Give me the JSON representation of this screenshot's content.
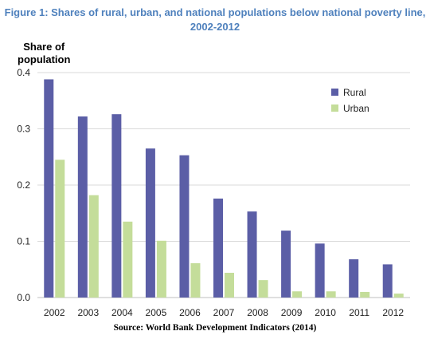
{
  "title_line1": "Figure 1: Shares of rural, urban, and national populations below national poverty line,",
  "title_line2": "2002-2012",
  "ylabel_line1": "Share of",
  "ylabel_line2": "population",
  "source": "Source: World Bank Development Indicators (2014)",
  "colors": {
    "rural": "#5b5ea6",
    "urban": "#c4dd9a",
    "title": "#4f81bd",
    "grid": "#d9d9d9"
  },
  "chart_data": {
    "type": "bar",
    "categories": [
      "2002",
      "2003",
      "2004",
      "2005",
      "2006",
      "2007",
      "2008",
      "2009",
      "2010",
      "2011",
      "2012"
    ],
    "series": [
      {
        "name": "Rural",
        "values": [
          0.388,
          0.322,
          0.326,
          0.265,
          0.253,
          0.176,
          0.153,
          0.119,
          0.096,
          0.068,
          0.059
        ]
      },
      {
        "name": "Urban",
        "values": [
          0.245,
          0.182,
          0.135,
          0.101,
          0.061,
          0.044,
          0.031,
          0.011,
          0.011,
          0.01,
          0.007
        ]
      }
    ],
    "yticks": [
      "0.0",
      "0.1",
      "0.2",
      "0.3",
      "0.4"
    ],
    "ylim": [
      0,
      0.4
    ],
    "grid": true,
    "legend_position": "top-right"
  }
}
